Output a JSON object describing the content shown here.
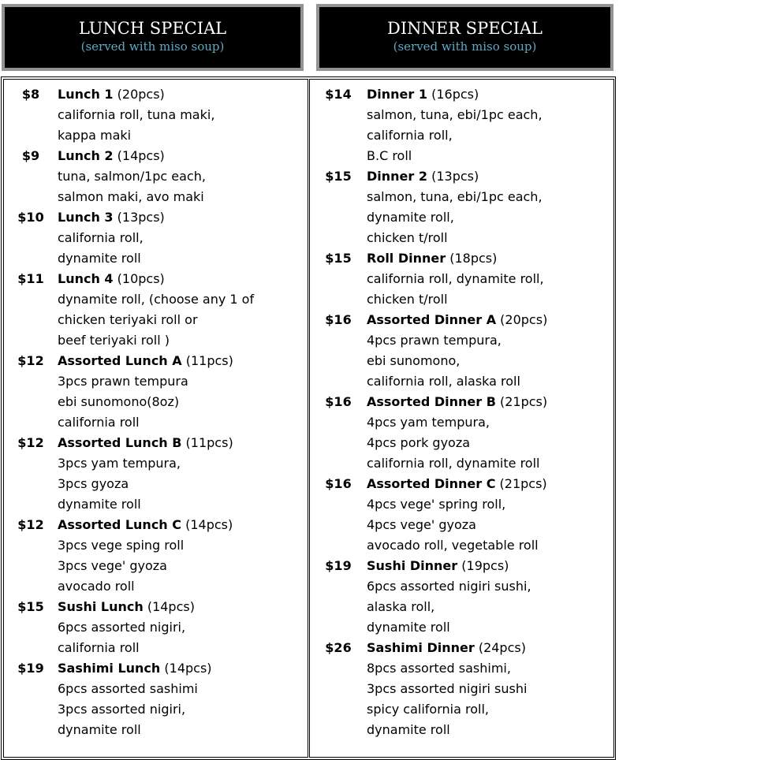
{
  "lunch": {
    "title": "LUNCH SPECIAL",
    "subtitle": "(served with miso soup)",
    "items": [
      {
        "price": "$8",
        "name": "Lunch 1",
        "pcs": "(20pcs)",
        "lines": [
          "california roll, tuna maki,",
          "kappa maki"
        ]
      },
      {
        "price": "$9",
        "name": "Lunch 2",
        "pcs": "(14pcs)",
        "lines": [
          "tuna, salmon/1pc each,",
          "salmon maki, avo maki"
        ]
      },
      {
        "price": "$10",
        "name": "Lunch 3",
        "pcs": "(13pcs)",
        "lines": [
          "california roll,",
          "dynamite roll"
        ]
      },
      {
        "price": "$11",
        "name": "Lunch 4",
        "pcs": "(10pcs)",
        "lines": [
          "dynamite roll, (choose any 1 of",
          "chicken teriyaki roll or",
          "beef teriyaki roll )"
        ]
      },
      {
        "price": "$12",
        "name": "Assorted Lunch A",
        "pcs": "(11pcs)",
        "lines": [
          "3pcs prawn tempura",
          "ebi sunomono(8oz)",
          "california roll"
        ]
      },
      {
        "price": "$12",
        "name": "Assorted Lunch B",
        "pcs": "(11pcs)",
        "lines": [
          "3pcs yam tempura,",
          "3pcs gyoza",
          "dynamite roll"
        ]
      },
      {
        "price": "$12",
        "name": "Assorted Lunch C",
        "pcs": "(14pcs)",
        "lines": [
          "3pcs vege sping roll",
          "3pcs vege' gyoza",
          "avocado roll"
        ]
      },
      {
        "price": "$15",
        "name": "Sushi Lunch",
        "pcs": "(14pcs)",
        "lines": [
          "6pcs assorted nigiri,",
          "california roll"
        ]
      },
      {
        "price": "$19",
        "name": "Sashimi Lunch",
        "pcs": "(14pcs)",
        "lines": [
          "6pcs assorted sashimi",
          "3pcs assorted nigiri,",
          "dynamite roll"
        ]
      }
    ]
  },
  "dinner": {
    "title": "DINNER SPECIAL",
    "subtitle": "(served with miso soup)",
    "items": [
      {
        "price": "$14",
        "name": "Dinner 1",
        "pcs": "(16pcs)",
        "lines": [
          "salmon, tuna, ebi/1pc each,",
          "california roll,",
          "B.C roll"
        ]
      },
      {
        "price": "$15",
        "name": "Dinner 2",
        "pcs": "(13pcs)",
        "lines": [
          "salmon, tuna, ebi/1pc each,",
          "dynamite roll,",
          "chicken t/roll"
        ]
      },
      {
        "price": "$15",
        "name": "Roll Dinner",
        "pcs": "(18pcs)",
        "lines": [
          "california roll, dynamite roll,",
          "chicken t/roll"
        ]
      },
      {
        "price": "$16",
        "name": "Assorted Dinner A",
        "pcs": "(20pcs)",
        "lines": [
          "4pcs prawn tempura,",
          "ebi sunomono,",
          "california roll, alaska roll"
        ]
      },
      {
        "price": "$16",
        "name": "Assorted Dinner B",
        "pcs": "(21pcs)",
        "lines": [
          "4pcs yam tempura,",
          "4pcs pork gyoza",
          "california roll, dynamite roll"
        ]
      },
      {
        "price": "$16",
        "name": "Assorted Dinner C",
        "pcs": "(21pcs)",
        "lines": [
          "4pcs vege' spring roll,",
          "4pcs vege' gyoza",
          "avocado roll, vegetable roll"
        ]
      },
      {
        "price": "$19",
        "name": "Sushi Dinner",
        "pcs": "(19pcs)",
        "lines": [
          "6pcs assorted nigiri sushi,",
          "alaska roll,",
          "dynamite roll"
        ]
      },
      {
        "price": "$26",
        "name": "Sashimi Dinner",
        "pcs": "(24pcs)",
        "lines": [
          "8pcs assorted sashimi,",
          "3pcs assorted nigiri sushi",
          "spicy california roll,",
          "dynamite roll"
        ]
      }
    ]
  }
}
